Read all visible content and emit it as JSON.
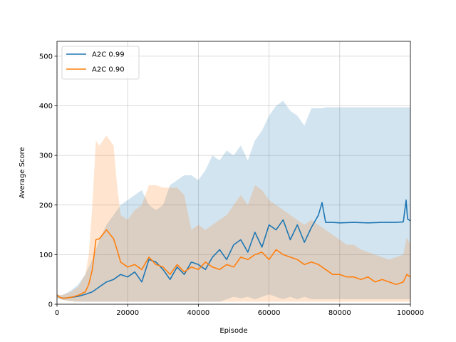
{
  "chart_data": {
    "type": "line",
    "title": "",
    "xlabel": "Episode",
    "ylabel": "Average Score",
    "xlim": [
      0,
      100000
    ],
    "ylim": [
      0,
      530
    ],
    "xticks": [
      0,
      20000,
      40000,
      60000,
      80000,
      100000
    ],
    "yticks": [
      0,
      100,
      200,
      300,
      400,
      500
    ],
    "grid": true,
    "legend_position": "top-left",
    "series": [
      {
        "name": "A2C 0.99",
        "color": "#1f77b4",
        "x": [
          0,
          1000,
          2000,
          4000,
          6000,
          8000,
          10000,
          12000,
          14000,
          16000,
          18000,
          20000,
          22000,
          24000,
          26000,
          28000,
          30000,
          32000,
          34000,
          36000,
          38000,
          40000,
          42000,
          44000,
          46000,
          48000,
          50000,
          52000,
          54000,
          56000,
          58000,
          60000,
          62000,
          64000,
          66000,
          68000,
          70000,
          72000,
          74000,
          75000,
          76000,
          78000,
          80000,
          84000,
          88000,
          92000,
          96000,
          98000,
          98800,
          99200,
          100000
        ],
        "y": [
          18,
          13,
          12,
          14,
          16,
          20,
          25,
          35,
          45,
          50,
          60,
          55,
          65,
          45,
          90,
          85,
          70,
          50,
          75,
          60,
          85,
          80,
          70,
          95,
          110,
          90,
          120,
          130,
          105,
          145,
          115,
          160,
          150,
          170,
          130,
          160,
          125,
          155,
          180,
          205,
          165,
          165,
          164,
          165,
          164,
          165,
          165,
          166,
          210,
          172,
          168
        ],
        "band_upper": [
          20,
          18,
          20,
          28,
          40,
          60,
          90,
          130,
          160,
          180,
          200,
          210,
          220,
          230,
          200,
          190,
          200,
          240,
          250,
          260,
          260,
          250,
          270,
          300,
          290,
          310,
          300,
          320,
          290,
          330,
          350,
          380,
          400,
          410,
          390,
          380,
          360,
          395,
          395,
          395,
          397,
          397,
          397,
          397,
          397,
          397,
          397,
          397,
          397,
          397,
          397
        ],
        "band_lower": [
          12,
          10,
          8,
          6,
          5,
          5,
          5,
          5,
          5,
          5,
          5,
          5,
          5,
          5,
          5,
          5,
          5,
          5,
          5,
          5,
          5,
          5,
          5,
          5,
          5,
          10,
          15,
          12,
          15,
          10,
          15,
          20,
          15,
          10,
          15,
          10,
          15,
          10,
          10,
          10,
          10,
          10,
          10,
          10,
          10,
          10,
          10,
          10,
          10,
          10,
          10
        ]
      },
      {
        "name": "A2C 0.90",
        "color": "#ff7f0e",
        "x": [
          0,
          1000,
          2000,
          4000,
          6000,
          8000,
          9000,
          10000,
          11000,
          12000,
          14000,
          16000,
          17000,
          18000,
          20000,
          22000,
          24000,
          26000,
          28000,
          30000,
          32000,
          34000,
          36000,
          38000,
          40000,
          42000,
          44000,
          46000,
          48000,
          50000,
          52000,
          54000,
          56000,
          58000,
          60000,
          62000,
          64000,
          66000,
          68000,
          70000,
          72000,
          74000,
          76000,
          78000,
          80000,
          82000,
          84000,
          86000,
          88000,
          90000,
          92000,
          94000,
          96000,
          98000,
          99000,
          100000
        ],
        "y": [
          18,
          13,
          12,
          14,
          18,
          25,
          40,
          70,
          130,
          132,
          150,
          132,
          110,
          85,
          75,
          80,
          70,
          95,
          80,
          75,
          60,
          80,
          65,
          75,
          70,
          85,
          75,
          70,
          80,
          75,
          95,
          90,
          100,
          105,
          90,
          110,
          100,
          95,
          90,
          80,
          85,
          80,
          70,
          60,
          60,
          55,
          55,
          50,
          55,
          45,
          50,
          45,
          40,
          45,
          60,
          55
        ],
        "band_upper": [
          20,
          18,
          20,
          25,
          35,
          60,
          100,
          200,
          330,
          320,
          340,
          320,
          240,
          180,
          170,
          190,
          200,
          240,
          240,
          235,
          235,
          235,
          220,
          150,
          160,
          150,
          160,
          170,
          180,
          200,
          220,
          200,
          240,
          230,
          210,
          200,
          190,
          180,
          170,
          160,
          170,
          160,
          150,
          140,
          130,
          120,
          120,
          110,
          105,
          100,
          95,
          90,
          95,
          100,
          135,
          120
        ],
        "band_lower": [
          14,
          10,
          8,
          6,
          5,
          5,
          5,
          5,
          5,
          5,
          5,
          5,
          5,
          5,
          5,
          5,
          5,
          5,
          5,
          5,
          5,
          5,
          5,
          5,
          5,
          5,
          5,
          5,
          5,
          5,
          5,
          5,
          5,
          5,
          5,
          5,
          5,
          5,
          5,
          5,
          5,
          5,
          5,
          5,
          5,
          5,
          5,
          5,
          5,
          5,
          5,
          5,
          5,
          5,
          5,
          5
        ]
      }
    ]
  }
}
